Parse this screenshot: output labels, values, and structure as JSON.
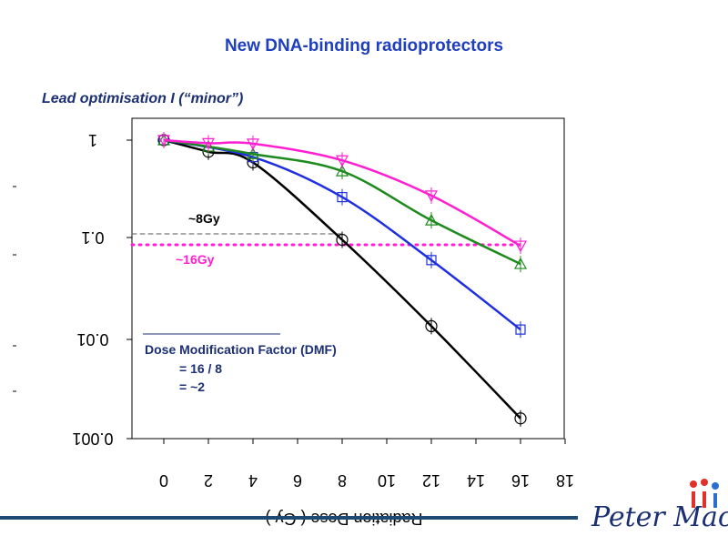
{
  "header": {
    "title": "New DNA-binding radioprotectors",
    "subtitle": "Lead optimisation I (“minor”)"
  },
  "colors": {
    "title": "#1f3fbf",
    "subtitle": "#1b2f73",
    "bottom_rule": "#1d4a73",
    "dmf_text": "#1b2f73",
    "logo": "#1b2f73"
  },
  "annotations": {
    "gy8": "~8Gy",
    "gy16": "~16Gy",
    "dmf_line1": "Dose Modification Factor (DMF)",
    "dmf_line2": "= 16 / 8",
    "dmf_line3": "= ~2"
  },
  "logo": {
    "text": "Peter Mac",
    "icon": "peter-mac-logo"
  },
  "chart_data": {
    "type": "line",
    "title": "",
    "xlabel": "Radiation Dose ( Gy )",
    "ylabel": "",
    "x_scale": "linear",
    "y_scale": "log",
    "xlim": [
      -2,
      18
    ],
    "ylim": [
      0.001,
      1
    ],
    "x_ticks": [
      0,
      2,
      4,
      6,
      8,
      10,
      12,
      14,
      16,
      18
    ],
    "x_tick_labels": [
      "0",
      "2",
      "4",
      "6",
      "8",
      "10",
      "12",
      "14",
      "16",
      "18"
    ],
    "y_ticks": [
      1,
      0.1,
      0.01,
      0.001
    ],
    "y_tick_labels": [
      "1",
      "0.1",
      "0.01",
      "0.001"
    ],
    "tick_labels_mirrored": true,
    "grid": false,
    "series": [
      {
        "color": "#000000",
        "marker": "circle",
        "x": [
          0,
          2,
          4,
          8,
          12,
          16
        ],
        "y": [
          1,
          0.76,
          0.59,
          0.095,
          0.0135,
          0.0016
        ]
      },
      {
        "color": "#1f2fe0",
        "marker": "square",
        "x": [
          0,
          4,
          8,
          12,
          16
        ],
        "y": [
          1,
          0.67,
          0.26,
          0.06,
          0.0125
        ]
      },
      {
        "color": "#1e8a1e",
        "marker": "triangle-up",
        "x": [
          0,
          2,
          4,
          8,
          12,
          16
        ],
        "y": [
          1,
          0.86,
          0.72,
          0.48,
          0.15,
          0.055
        ]
      },
      {
        "color": "#ff1fd0",
        "marker": "triangle-down",
        "x": [
          0,
          2,
          4,
          8,
          12,
          16
        ],
        "y": [
          1,
          0.93,
          0.92,
          0.62,
          0.27,
          0.083
        ]
      }
    ],
    "reference_lines": [
      {
        "label": "~8Gy",
        "y": 0.1,
        "x_end": 8,
        "color": "#555555",
        "style": "dashed"
      },
      {
        "label": "~16Gy",
        "y": 0.09,
        "x_end": 16,
        "color": "#ff1fd0",
        "style": "dotted"
      }
    ]
  }
}
